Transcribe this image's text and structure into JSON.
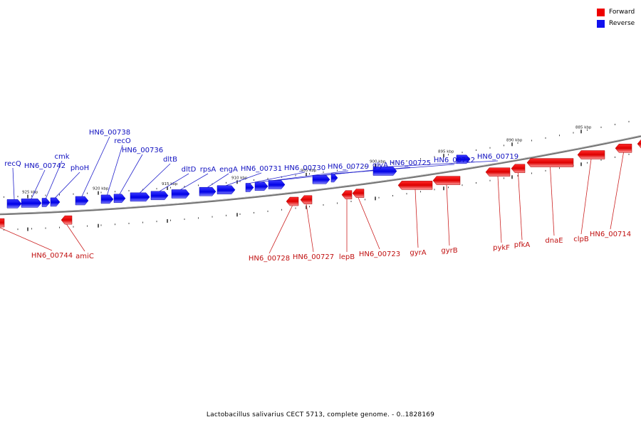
{
  "legend": {
    "forward_label": "Forward",
    "reverse_label": "Reverse",
    "forward_color": "#ee0000",
    "reverse_color": "#1111ee"
  },
  "caption": "Lactobacillus salivarius CECT 5713, complete genome. - 0..1828169",
  "scale_labels": [
    "925 kbp",
    "920 kbp",
    "915 kbp",
    "910 kbp",
    "905 kbp",
    "900 kbp",
    "895 kbp",
    "890 kbp",
    "885 kbp"
  ],
  "reverse_genes": [
    {
      "label": "recQ"
    },
    {
      "label": "HN6_00742"
    },
    {
      "label": "cmk"
    },
    {
      "label": "phoH"
    },
    {
      "label": "HN6_00738"
    },
    {
      "label": "recO"
    },
    {
      "label": "HN6_00736"
    },
    {
      "label": "dltB"
    },
    {
      "label": "dltD"
    },
    {
      "label": "rpsA"
    },
    {
      "label": "engA"
    },
    {
      "label": "HN6_00731"
    },
    {
      "label": "HN6_00730"
    },
    {
      "label": "HN6_00729"
    },
    {
      "label": "glyA"
    },
    {
      "label": "HN6_00725"
    },
    {
      "label": "HN6_00722"
    },
    {
      "label": "HN6_00719"
    }
  ],
  "forward_genes": [
    {
      "label": "HN6_00744"
    },
    {
      "label": "amiC"
    },
    {
      "label": "HN6_00728"
    },
    {
      "label": "HN6_00727"
    },
    {
      "label": "lepB"
    },
    {
      "label": "HN6_00723"
    },
    {
      "label": "gyrA"
    },
    {
      "label": "gyrB"
    },
    {
      "label": "pykF"
    },
    {
      "label": "pfkA"
    },
    {
      "label": "dnaE"
    },
    {
      "label": "clpB"
    },
    {
      "label": "HN6_00714"
    }
  ]
}
